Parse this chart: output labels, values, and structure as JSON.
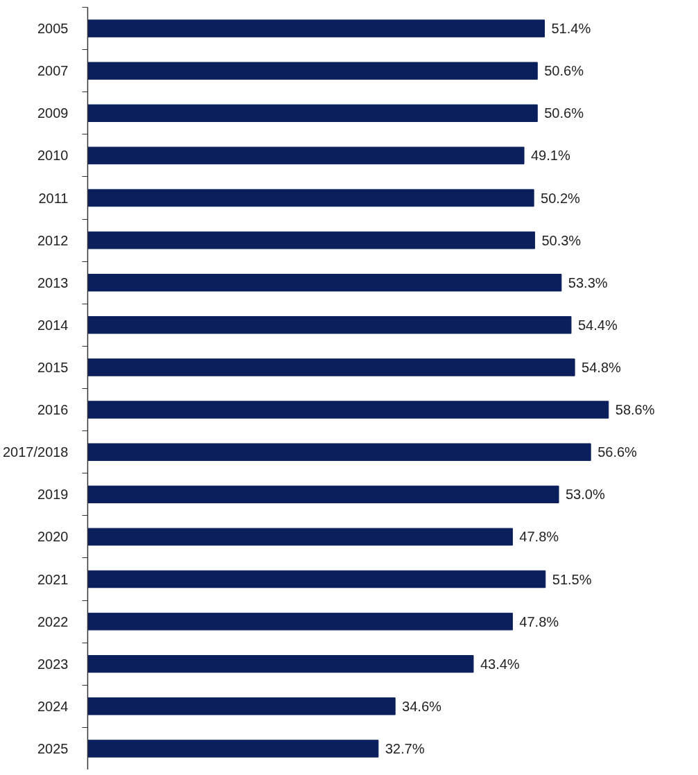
{
  "chart_data": {
    "type": "bar",
    "orientation": "horizontal",
    "categories": [
      "2005",
      "2007",
      "2009",
      "2010",
      "2011",
      "2012",
      "2013",
      "2014",
      "2015",
      "2016",
      "2017/2018",
      "2019",
      "2020",
      "2021",
      "2022",
      "2023",
      "2024",
      "2025"
    ],
    "values": [
      51.4,
      50.6,
      50.6,
      49.1,
      50.2,
      50.3,
      53.3,
      54.4,
      54.8,
      58.6,
      56.6,
      53.0,
      47.8,
      51.5,
      47.8,
      43.4,
      34.6,
      32.7
    ],
    "value_labels": [
      "51.4%",
      "50.6%",
      "50.6%",
      "49.1%",
      "50.2%",
      "50.3%",
      "53.3%",
      "54.4%",
      "54.8%",
      "58.6%",
      "56.6%",
      "53.0%",
      "47.8%",
      "51.5%",
      "47.8%",
      "43.4%",
      "34.6%",
      "32.7%"
    ],
    "color": "#0b1f5c",
    "tick_labels": "y",
    "grid": false
  }
}
